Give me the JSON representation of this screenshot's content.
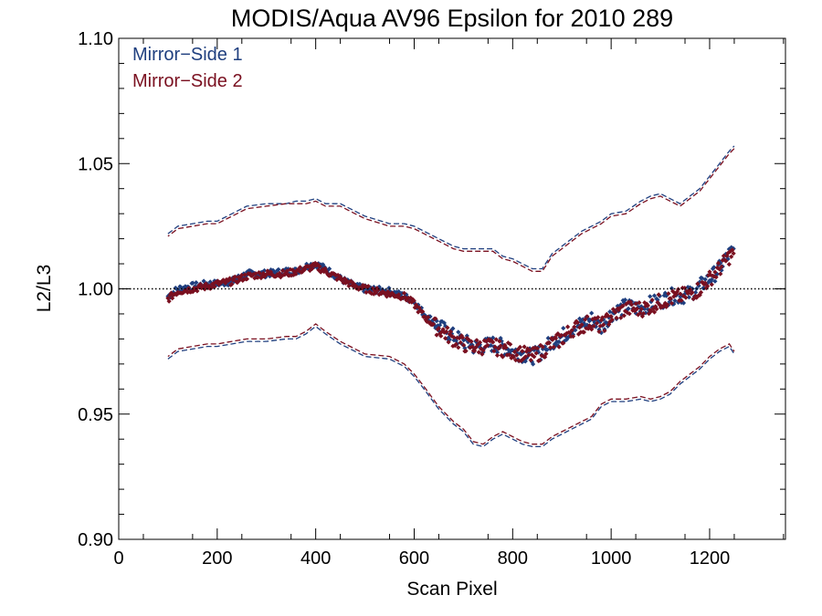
{
  "chart_data": {
    "type": "scatter",
    "title": "MODIS/Aqua AV96 Epsilon for 2010 289",
    "xlabel": "Scan Pixel",
    "ylabel": "L2/L3",
    "xlim": [
      0,
      1354
    ],
    "ylim": [
      0.9,
      1.1
    ],
    "x_ticks": [
      0,
      200,
      400,
      600,
      800,
      1000,
      1200
    ],
    "x_tick_labels": [
      "0",
      "200",
      "400",
      "600",
      "800",
      "1000",
      "1200"
    ],
    "y_ticks": [
      0.9,
      0.95,
      1.0,
      1.05,
      1.1
    ],
    "y_tick_labels": [
      "0.90",
      "0.95",
      "1.00",
      "1.05",
      "1.10"
    ],
    "reference_line": {
      "y": 1.0,
      "style": "dotted"
    },
    "legend_position": "top-left",
    "colors": {
      "ms1": "#1f3f7f",
      "ms2": "#7a1020"
    },
    "mean_x": [
      100,
      120,
      150,
      180,
      200,
      230,
      260,
      300,
      340,
      360,
      380,
      400,
      420,
      450,
      480,
      500,
      550,
      580,
      600,
      620,
      650,
      680,
      700,
      720,
      740,
      760,
      780,
      800,
      820,
      840,
      860,
      880,
      900,
      920,
      940,
      960,
      980,
      1000,
      1030,
      1060,
      1080,
      1100,
      1120,
      1140,
      1160,
      1180,
      1200,
      1220,
      1240,
      1250
    ],
    "series": [
      {
        "name": "Mirror−Side 1",
        "color": "#1f3f7f",
        "mean": [
          0.997,
          1.0,
          1.001,
          1.002,
          1.002,
          1.003,
          1.006,
          1.006,
          1.007,
          1.007,
          1.009,
          1.01,
          1.008,
          1.004,
          1.001,
          1.0,
          0.999,
          0.997,
          0.995,
          0.99,
          0.985,
          0.981,
          0.979,
          0.977,
          0.977,
          0.978,
          0.977,
          0.975,
          0.974,
          0.973,
          0.975,
          0.979,
          0.981,
          0.984,
          0.986,
          0.988,
          0.985,
          0.99,
          0.993,
          0.992,
          0.994,
          0.995,
          0.997,
          0.997,
          0.998,
          1.001,
          1.004,
          1.008,
          1.014,
          1.015
        ],
        "upper": [
          1.022,
          1.025,
          1.026,
          1.027,
          1.027,
          1.03,
          1.033,
          1.034,
          1.034,
          1.035,
          1.035,
          1.036,
          1.034,
          1.034,
          1.031,
          1.029,
          1.026,
          1.026,
          1.025,
          1.023,
          1.02,
          1.017,
          1.016,
          1.016,
          1.016,
          1.016,
          1.013,
          1.012,
          1.01,
          1.008,
          1.008,
          1.014,
          1.017,
          1.02,
          1.023,
          1.025,
          1.027,
          1.03,
          1.031,
          1.035,
          1.037,
          1.038,
          1.036,
          1.034,
          1.037,
          1.04,
          1.045,
          1.05,
          1.055,
          1.057
        ],
        "lower": [
          0.972,
          0.975,
          0.976,
          0.977,
          0.977,
          0.978,
          0.979,
          0.979,
          0.98,
          0.98,
          0.982,
          0.985,
          0.982,
          0.978,
          0.975,
          0.973,
          0.972,
          0.969,
          0.965,
          0.96,
          0.952,
          0.946,
          0.943,
          0.938,
          0.937,
          0.94,
          0.942,
          0.94,
          0.938,
          0.937,
          0.937,
          0.94,
          0.942,
          0.944,
          0.946,
          0.948,
          0.953,
          0.955,
          0.955,
          0.956,
          0.955,
          0.956,
          0.958,
          0.962,
          0.965,
          0.968,
          0.972,
          0.975,
          0.977,
          0.974
        ]
      },
      {
        "name": "Mirror−Side 2",
        "color": "#7a1020",
        "mean": [
          0.996,
          0.999,
          1.0,
          1.001,
          1.002,
          1.003,
          1.005,
          1.006,
          1.006,
          1.007,
          1.008,
          1.009,
          1.007,
          1.004,
          1.001,
          1.0,
          0.998,
          0.997,
          0.994,
          0.989,
          0.984,
          0.98,
          0.978,
          0.977,
          0.977,
          0.977,
          0.976,
          0.975,
          0.974,
          0.973,
          0.975,
          0.978,
          0.98,
          0.984,
          0.985,
          0.987,
          0.985,
          0.989,
          0.992,
          0.992,
          0.993,
          0.995,
          0.996,
          0.997,
          0.998,
          1.0,
          1.004,
          1.008,
          1.013,
          1.014
        ],
        "upper": [
          1.021,
          1.024,
          1.025,
          1.026,
          1.026,
          1.029,
          1.032,
          1.033,
          1.034,
          1.034,
          1.034,
          1.035,
          1.033,
          1.033,
          1.03,
          1.028,
          1.025,
          1.025,
          1.024,
          1.022,
          1.019,
          1.016,
          1.015,
          1.015,
          1.015,
          1.015,
          1.012,
          1.011,
          1.009,
          1.007,
          1.007,
          1.013,
          1.016,
          1.019,
          1.022,
          1.024,
          1.026,
          1.029,
          1.03,
          1.034,
          1.036,
          1.037,
          1.035,
          1.033,
          1.036,
          1.039,
          1.044,
          1.049,
          1.054,
          1.056
        ],
        "lower": [
          0.973,
          0.976,
          0.977,
          0.978,
          0.978,
          0.979,
          0.98,
          0.98,
          0.981,
          0.981,
          0.983,
          0.986,
          0.983,
          0.979,
          0.976,
          0.974,
          0.973,
          0.97,
          0.966,
          0.961,
          0.953,
          0.947,
          0.944,
          0.939,
          0.938,
          0.941,
          0.943,
          0.941,
          0.939,
          0.938,
          0.938,
          0.941,
          0.943,
          0.945,
          0.947,
          0.949,
          0.954,
          0.956,
          0.956,
          0.957,
          0.956,
          0.957,
          0.959,
          0.963,
          0.966,
          0.969,
          0.973,
          0.976,
          0.978,
          0.975
        ]
      }
    ]
  }
}
